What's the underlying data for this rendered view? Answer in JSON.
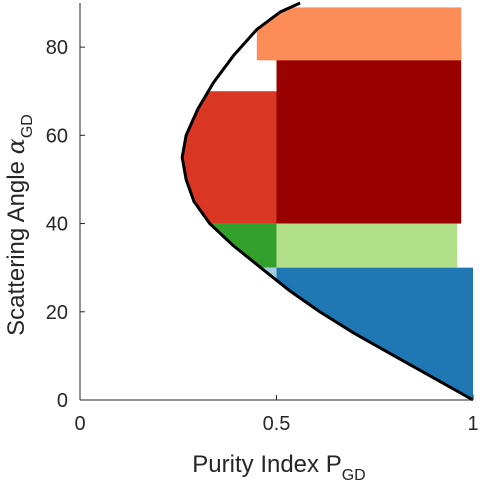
{
  "chart_data": {
    "type": "scatter",
    "title": "",
    "xlabel": {
      "main": "Purity Index P",
      "sub": "GD"
    },
    "ylabel": {
      "main": "Scattering Angle ",
      "greek": "α",
      "sub": "GD"
    },
    "xlim": [
      0,
      1
    ],
    "ylim": [
      0,
      90
    ],
    "xticks": [
      {
        "value": 0,
        "label": "0"
      },
      {
        "value": 0.5,
        "label": "0.5"
      },
      {
        "value": 1,
        "label": "1"
      }
    ],
    "yticks": [
      {
        "value": 0,
        "label": "0"
      },
      {
        "value": 20,
        "label": "20"
      },
      {
        "value": 40,
        "label": "40"
      },
      {
        "value": 60,
        "label": "60"
      },
      {
        "value": 80,
        "label": "80"
      }
    ],
    "grid": false,
    "boundary": {
      "color": "#000000",
      "points": [
        [
          1.0,
          0
        ],
        [
          0.9,
          5
        ],
        [
          0.8,
          10
        ],
        [
          0.7,
          15
        ],
        [
          0.61,
          20
        ],
        [
          0.53,
          25
        ],
        [
          0.46,
          30
        ],
        [
          0.39,
          35
        ],
        [
          0.33,
          40
        ],
        [
          0.29,
          45
        ],
        [
          0.27,
          50
        ],
        [
          0.26,
          55
        ],
        [
          0.27,
          60
        ],
        [
          0.3,
          66
        ],
        [
          0.34,
          72
        ],
        [
          0.39,
          78
        ],
        [
          0.45,
          84
        ],
        [
          0.51,
          88
        ],
        [
          0.56,
          90
        ]
      ]
    },
    "regions": [
      {
        "x": [
          0.26,
          0.5
        ],
        "y": [
          40,
          70
        ],
        "color": "#d93723"
      },
      {
        "x": [
          0.5,
          0.97
        ],
        "y": [
          40,
          80
        ],
        "color": "#990000"
      },
      {
        "x": [
          0.32,
          0.5
        ],
        "y": [
          30,
          40
        ],
        "color": "#33a02c"
      },
      {
        "x": [
          0.5,
          0.96
        ],
        "y": [
          30,
          40
        ],
        "color": "#b2df8a"
      },
      {
        "x": [
          0.4,
          0.5
        ],
        "y": [
          25,
          30
        ],
        "color": "#a6cee3"
      },
      {
        "x": [
          0.5,
          1.0
        ],
        "y": [
          0,
          30
        ],
        "color": "#1f78b4"
      },
      {
        "x": [
          0.45,
          0.97
        ],
        "y": [
          77,
          89
        ],
        "color": "#fc8d59"
      }
    ]
  }
}
